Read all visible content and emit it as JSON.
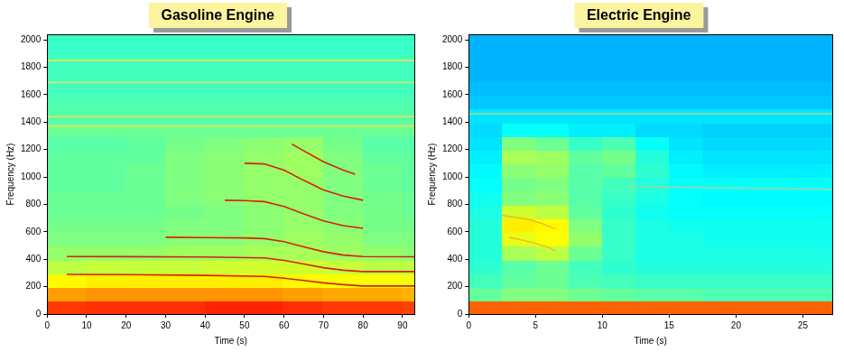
{
  "chart_data": [
    {
      "type": "heatmap",
      "title": "Gasoline Engine",
      "xlabel": "Time (s)",
      "ylabel": "Frequency (Hz)",
      "xlim": [
        0,
        93
      ],
      "ylim": [
        0,
        2040
      ],
      "xticks": [
        0,
        10,
        20,
        30,
        40,
        50,
        60,
        70,
        80,
        90
      ],
      "yticks": [
        0,
        200,
        400,
        600,
        800,
        1000,
        1200,
        1400,
        1600,
        1800,
        2000
      ],
      "grid": false,
      "x_bins": [
        0,
        10,
        20,
        30,
        40,
        50,
        60,
        70,
        80,
        90,
        93
      ],
      "y_bins": [
        0,
        100,
        200,
        300,
        400,
        500,
        600,
        700,
        800,
        900,
        1000,
        1100,
        1200,
        1300,
        1400,
        1500,
        1600,
        1700,
        1800,
        1900,
        2000,
        2040
      ],
      "zlim": [
        0,
        10
      ],
      "cells": [
        [
          8.2,
          8.3,
          8.3,
          8.3,
          8.4,
          8.4,
          8.3,
          8.2,
          8.2,
          8.1
        ],
        [
          7.2,
          7.3,
          7.3,
          7.3,
          7.3,
          7.3,
          7.2,
          7.1,
          7.1,
          7.0
        ],
        [
          6.3,
          6.4,
          6.4,
          6.4,
          6.4,
          6.4,
          6.3,
          6.2,
          6.2,
          6.1
        ],
        [
          5.6,
          5.7,
          5.7,
          5.7,
          5.8,
          5.8,
          5.8,
          5.7,
          5.6,
          5.6
        ],
        [
          5.2,
          5.2,
          5.2,
          5.3,
          5.3,
          5.4,
          5.4,
          5.3,
          5.2,
          5.1
        ],
        [
          5.0,
          5.0,
          5.0,
          5.1,
          5.1,
          5.2,
          5.3,
          5.2,
          5.0,
          5.0
        ],
        [
          4.9,
          4.9,
          4.9,
          5.0,
          5.0,
          5.1,
          5.2,
          5.1,
          4.9,
          4.9
        ],
        [
          4.8,
          4.8,
          4.8,
          4.9,
          5.0,
          5.1,
          5.2,
          5.0,
          4.9,
          4.8
        ],
        [
          4.8,
          4.8,
          4.8,
          5.0,
          5.1,
          5.2,
          5.2,
          5.0,
          4.9,
          4.8
        ],
        [
          4.7,
          4.7,
          4.8,
          5.0,
          5.1,
          5.2,
          5.2,
          5.0,
          4.8,
          4.7
        ],
        [
          4.7,
          4.7,
          4.8,
          5.0,
          5.1,
          5.2,
          5.3,
          5.0,
          4.8,
          4.7
        ],
        [
          4.7,
          4.7,
          4.7,
          5.0,
          5.1,
          5.2,
          5.3,
          5.0,
          4.7,
          4.7
        ],
        [
          4.6,
          4.6,
          4.7,
          4.9,
          5.0,
          5.1,
          5.2,
          4.9,
          4.6,
          4.6
        ],
        [
          4.8,
          4.8,
          4.8,
          4.8,
          4.8,
          4.8,
          4.8,
          4.8,
          4.8,
          4.8
        ],
        [
          4.6,
          4.6,
          4.6,
          4.6,
          4.6,
          4.6,
          4.6,
          4.6,
          4.6,
          4.6
        ],
        [
          4.5,
          4.5,
          4.5,
          4.5,
          4.5,
          4.5,
          4.5,
          4.5,
          4.5,
          4.5
        ],
        [
          4.4,
          4.4,
          4.4,
          4.4,
          4.4,
          4.4,
          4.4,
          4.4,
          4.4,
          4.4
        ],
        [
          4.4,
          4.4,
          4.4,
          4.4,
          4.4,
          4.4,
          4.4,
          4.4,
          4.4,
          4.4
        ],
        [
          4.4,
          4.4,
          4.4,
          4.4,
          4.4,
          4.4,
          4.4,
          4.4,
          4.4,
          4.4
        ],
        [
          4.3,
          4.3,
          4.3,
          4.3,
          4.3,
          4.3,
          4.3,
          4.3,
          4.3,
          4.3
        ],
        [
          4.3,
          4.3,
          4.3,
          4.3,
          4.3,
          4.3,
          4.3,
          4.3,
          4.3,
          4.3
        ]
      ],
      "series": [
        {
          "color": "#d8200c",
          "x": [
            5,
            20,
            40,
            55,
            60,
            65,
            70,
            75,
            80,
            93
          ],
          "values": [
            290,
            288,
            282,
            275,
            262,
            245,
            228,
            215,
            205,
            205
          ]
        },
        {
          "color": "#d8200c",
          "x": [
            5,
            20,
            40,
            55,
            60,
            65,
            70,
            75,
            80,
            93
          ],
          "values": [
            420,
            419,
            416,
            410,
            392,
            365,
            338,
            320,
            310,
            310
          ]
        },
        {
          "color": "#d8200c",
          "x": [
            30,
            40,
            50,
            55,
            60,
            65,
            70,
            75,
            80,
            93
          ],
          "values": [
            560,
            558,
            555,
            550,
            528,
            490,
            455,
            430,
            420,
            418
          ]
        },
        {
          "color": "#d8200c",
          "x": [
            45,
            50,
            55,
            60,
            65,
            70,
            75,
            80
          ],
          "values": [
            830,
            828,
            820,
            785,
            730,
            680,
            645,
            625
          ]
        },
        {
          "color": "#d8200c",
          "x": [
            50,
            55,
            60,
            65,
            70,
            75,
            80
          ],
          "values": [
            1100,
            1095,
            1050,
            975,
            905,
            860,
            830
          ]
        },
        {
          "color": "#d8200c",
          "x": [
            62,
            65,
            70,
            75,
            78
          ],
          "values": [
            1240,
            1190,
            1110,
            1050,
            1020
          ]
        },
        {
          "color": "#e8e060",
          "x": [
            0,
            93
          ],
          "values": [
            1850,
            1850
          ]
        },
        {
          "color": "#e8e060",
          "x": [
            0,
            93
          ],
          "values": [
            1690,
            1690
          ]
        },
        {
          "color": "#e8e060",
          "x": [
            0,
            93
          ],
          "values": [
            1440,
            1440
          ]
        },
        {
          "color": "#e8e060",
          "x": [
            0,
            93
          ],
          "values": [
            1370,
            1370
          ]
        }
      ]
    },
    {
      "type": "heatmap",
      "title": "Electric Engine",
      "xlabel": "Time (s)",
      "ylabel": "Frequency (Hz)",
      "xlim": [
        0,
        27.2
      ],
      "ylim": [
        0,
        2040
      ],
      "xticks": [
        0,
        5,
        10,
        15,
        20,
        25
      ],
      "yticks": [
        0,
        200,
        400,
        600,
        800,
        1000,
        1200,
        1400,
        1600,
        1800,
        2000
      ],
      "grid": false,
      "x_bins": [
        0,
        2.5,
        5,
        7.5,
        10,
        12.5,
        15,
        17.5,
        20,
        22.5,
        25,
        27.2
      ],
      "y_bins": [
        0,
        100,
        200,
        300,
        400,
        500,
        600,
        700,
        800,
        900,
        1000,
        1100,
        1200,
        1300,
        1400,
        1500,
        1600,
        1700,
        1800,
        1900,
        2000,
        2040
      ],
      "zlim": [
        0,
        10
      ],
      "cells": [
        [
          7.8,
          7.8,
          7.8,
          7.8,
          7.8,
          7.8,
          7.8,
          7.8,
          7.8,
          7.8,
          7.8
        ],
        [
          4.7,
          5.0,
          5.0,
          4.8,
          4.7,
          4.6,
          4.6,
          4.5,
          4.5,
          4.5,
          4.5
        ],
        [
          4.4,
          4.7,
          4.8,
          4.5,
          4.4,
          4.3,
          4.3,
          4.3,
          4.3,
          4.3,
          4.3
        ],
        [
          4.2,
          4.6,
          4.8,
          4.4,
          4.2,
          4.1,
          4.1,
          4.1,
          4.1,
          4.1,
          4.1
        ],
        [
          4.1,
          5.4,
          5.6,
          4.8,
          4.3,
          4.0,
          4.0,
          4.0,
          4.0,
          4.0,
          4.0
        ],
        [
          4.1,
          6.0,
          6.2,
          5.2,
          4.3,
          4.0,
          4.0,
          3.9,
          3.9,
          3.9,
          3.9
        ],
        [
          4.1,
          6.4,
          6.3,
          5.0,
          4.3,
          4.0,
          3.9,
          3.9,
          3.9,
          3.9,
          3.9
        ],
        [
          4.0,
          5.8,
          5.6,
          4.7,
          4.2,
          3.9,
          3.8,
          3.8,
          3.8,
          3.8,
          3.8
        ],
        [
          3.9,
          5.0,
          5.1,
          4.6,
          4.3,
          4.0,
          3.8,
          3.7,
          3.7,
          3.7,
          3.7
        ],
        [
          3.8,
          4.9,
          5.0,
          4.6,
          4.4,
          4.1,
          3.8,
          3.8,
          3.8,
          3.8,
          3.8
        ],
        [
          3.7,
          5.1,
          5.2,
          4.6,
          4.7,
          4.2,
          3.7,
          3.6,
          3.6,
          3.6,
          3.6
        ],
        [
          3.6,
          5.4,
          5.3,
          4.7,
          4.9,
          4.1,
          3.6,
          3.5,
          3.5,
          3.5,
          3.5
        ],
        [
          3.5,
          5.0,
          4.8,
          4.3,
          4.5,
          3.8,
          3.5,
          3.4,
          3.4,
          3.4,
          3.4
        ],
        [
          3.4,
          3.8,
          3.8,
          3.6,
          3.6,
          3.4,
          3.4,
          3.3,
          3.3,
          3.3,
          3.3
        ],
        [
          3.5,
          3.5,
          3.5,
          3.5,
          3.5,
          3.5,
          3.5,
          3.5,
          3.5,
          3.5,
          3.5
        ],
        [
          3.2,
          3.2,
          3.2,
          3.2,
          3.2,
          3.2,
          3.2,
          3.2,
          3.2,
          3.2,
          3.2
        ],
        [
          3.1,
          3.1,
          3.1,
          3.1,
          3.1,
          3.1,
          3.1,
          3.1,
          3.1,
          3.1,
          3.1
        ],
        [
          3.0,
          3.0,
          3.0,
          3.0,
          3.0,
          3.0,
          3.0,
          3.0,
          3.0,
          3.0,
          3.0
        ],
        [
          3.0,
          3.0,
          3.0,
          3.0,
          3.0,
          3.0,
          3.0,
          3.0,
          3.0,
          3.0,
          3.0
        ],
        [
          3.0,
          3.0,
          3.0,
          3.0,
          3.0,
          3.0,
          3.0,
          3.0,
          3.0,
          3.0,
          3.0
        ],
        [
          3.0,
          3.0,
          3.0,
          3.0,
          3.0,
          3.0,
          3.0,
          3.0,
          3.0,
          3.0,
          3.0
        ]
      ],
      "series": [
        {
          "color": "#f0c020",
          "x": [
            2.5,
            3.5,
            4.5,
            5.5,
            6.5
          ],
          "values": [
            720,
            705,
            690,
            660,
            620
          ]
        },
        {
          "color": "#f0c020",
          "x": [
            3,
            4,
            5,
            6,
            6.5
          ],
          "values": [
            560,
            540,
            515,
            485,
            460
          ]
        },
        {
          "color": "#9ad8a0",
          "x": [
            0,
            27.2
          ],
          "values": [
            1460,
            1460
          ]
        },
        {
          "color": "#9ad8a0",
          "x": [
            12,
            27.2
          ],
          "values": [
            930,
            910
          ]
        }
      ]
    }
  ]
}
